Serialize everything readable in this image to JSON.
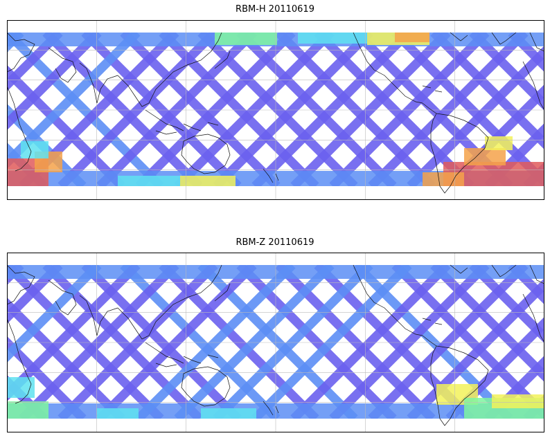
{
  "panels": [
    {
      "id": "top",
      "title": "RBM-H 20110619"
    },
    {
      "id": "bottom",
      "title": "RBM-Z 20110619"
    }
  ],
  "colors": {
    "low": "#6a60ee",
    "low2": "#5c8ef5",
    "mid": "#5fe2f0",
    "midhigh": "#7ff5a0",
    "high": "#f2f25a",
    "higher": "#f5a24a",
    "max": "#e05a5a"
  }
}
